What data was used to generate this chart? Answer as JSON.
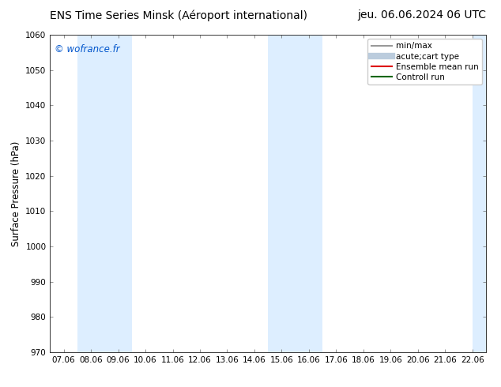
{
  "title_left": "ENS Time Series Minsk (Aéroport international)",
  "title_right": "jeu. 06.06.2024 06 UTC",
  "ylabel": "Surface Pressure (hPa)",
  "watermark": "© wofrance.fr",
  "watermark_color": "#0055cc",
  "ylim": [
    970,
    1060
  ],
  "yticks": [
    970,
    980,
    990,
    1000,
    1010,
    1020,
    1030,
    1040,
    1050,
    1060
  ],
  "xtick_labels": [
    "07.06",
    "08.06",
    "09.06",
    "10.06",
    "11.06",
    "12.06",
    "13.06",
    "14.06",
    "15.06",
    "16.06",
    "17.06",
    "18.06",
    "19.06",
    "20.06",
    "21.06",
    "22.06"
  ],
  "xtick_positions": [
    0,
    1,
    2,
    3,
    4,
    5,
    6,
    7,
    8,
    9,
    10,
    11,
    12,
    13,
    14,
    15
  ],
  "xlim": [
    -0.5,
    15.5
  ],
  "shaded_bands": [
    {
      "x_start": 0.5,
      "x_end": 2.5
    },
    {
      "x_start": 7.5,
      "x_end": 9.5
    }
  ],
  "right_band_start": 15.0,
  "shaded_color": "#ddeeff",
  "legend_entries": [
    {
      "label": "min/max",
      "color": "#999999",
      "lw": 1.5
    },
    {
      "label": "acute;cart type",
      "color": "#bbccdd",
      "lw": 6
    },
    {
      "label": "Ensemble mean run",
      "color": "#dd0000",
      "lw": 1.5
    },
    {
      "label": "Controll run",
      "color": "#006600",
      "lw": 1.5
    }
  ],
  "background_color": "#ffffff",
  "plot_bg_color": "#ffffff",
  "title_fontsize": 10,
  "tick_fontsize": 7.5,
  "ylabel_fontsize": 8.5,
  "legend_fontsize": 7.5
}
